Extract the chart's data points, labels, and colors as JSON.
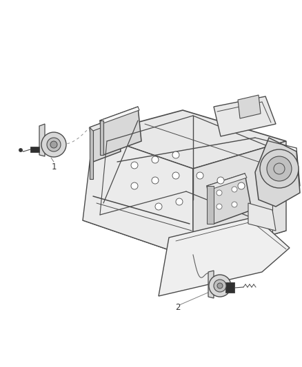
{
  "background_color": "#ffffff",
  "line_color": "#4a4a4a",
  "light_fill": "#e8e8e8",
  "mid_fill": "#d8d8d8",
  "dark_fill": "#c0c0c0",
  "label_color": "#333333",
  "fig_width": 4.38,
  "fig_height": 5.33,
  "dpi": 100,
  "label1": "1",
  "label2": "2"
}
